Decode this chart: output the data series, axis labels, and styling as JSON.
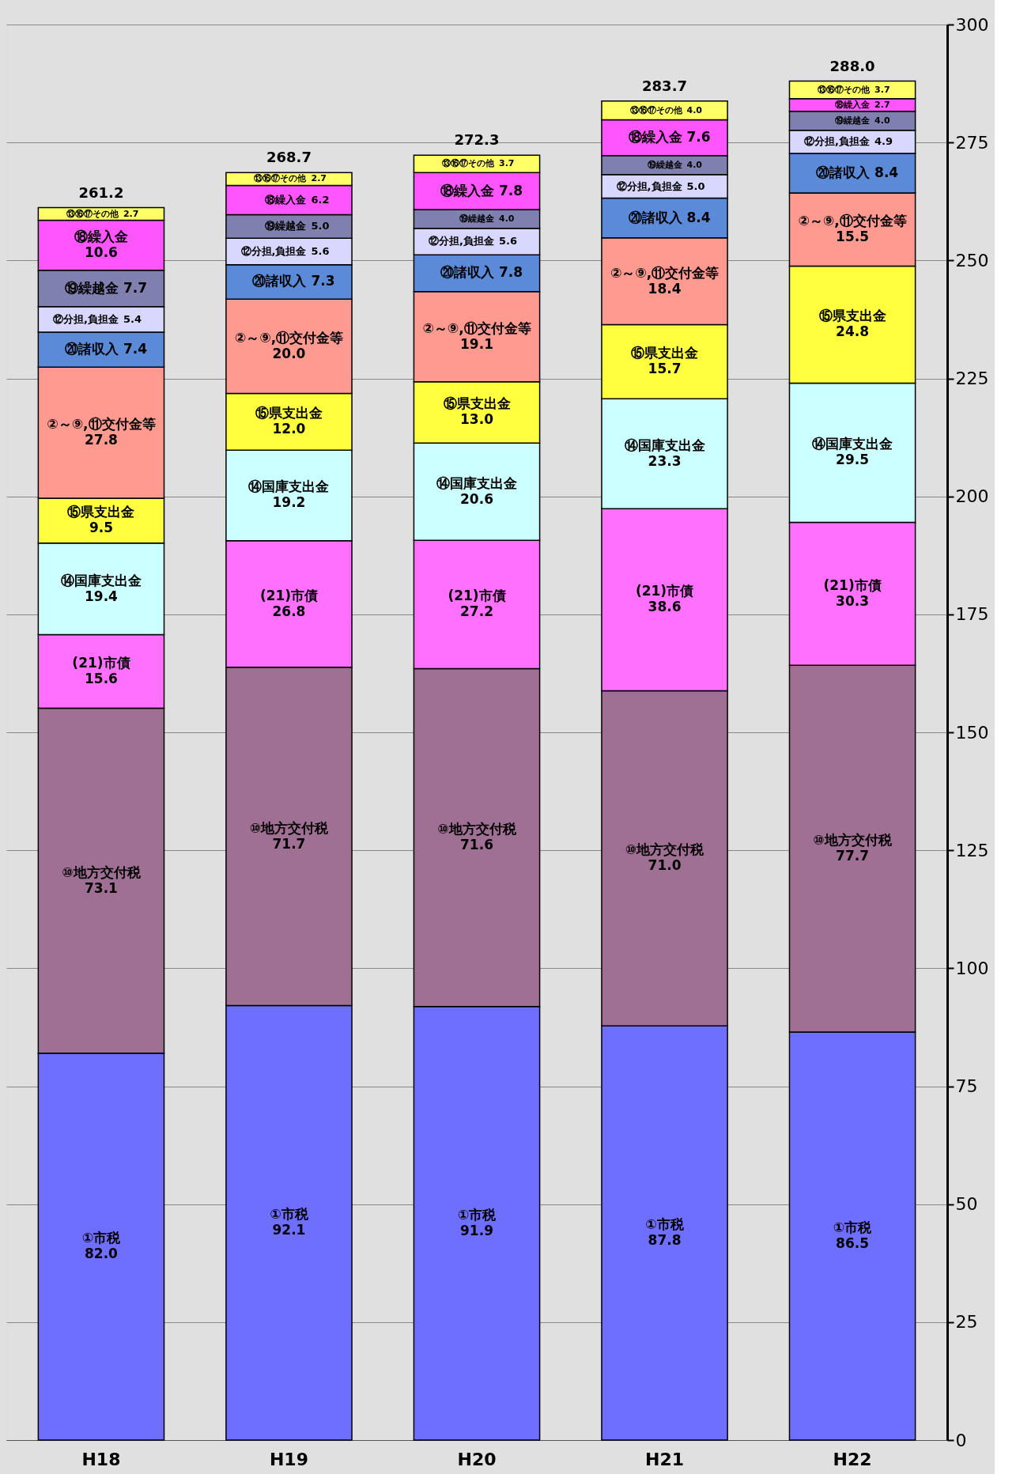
{
  "chart_data": {
    "type": "bar",
    "stacked": true,
    "categories": [
      "H18",
      "H19",
      "H20",
      "H21",
      "H22"
    ],
    "series": [
      {
        "name": "①市税",
        "color": "#6f6fff",
        "values": [
          82.0,
          92.1,
          91.9,
          87.8,
          86.5
        ],
        "value_labels": [
          "82.0",
          "92.1",
          "91.9",
          "87.8",
          "86.5"
        ]
      },
      {
        "name": "⑩地方交付税",
        "color": "#a07094",
        "values": [
          73.1,
          71.7,
          71.6,
          71.0,
          77.7
        ],
        "value_labels": [
          "73.1",
          "71.7",
          "71.6",
          "71.0",
          "77.7"
        ]
      },
      {
        "name": "(21)市債",
        "color": "#ff70ff",
        "values": [
          15.6,
          26.8,
          27.2,
          38.6,
          30.3
        ],
        "value_labels": [
          "15.6",
          "26.8",
          "27.2",
          "38.6",
          "30.3"
        ]
      },
      {
        "name": "⑭国庫支出金",
        "color": "#ccffff",
        "values": [
          19.4,
          19.2,
          20.6,
          23.3,
          29.5
        ],
        "value_labels": [
          "19.4",
          "19.2",
          "20.6",
          "23.3",
          "29.5"
        ]
      },
      {
        "name": "⑮県支出金",
        "color": "#ffff40",
        "values": [
          9.5,
          12.0,
          13.0,
          15.7,
          24.8
        ],
        "value_labels": [
          "9.5",
          "12.0",
          "13.0",
          "15.7",
          "24.8"
        ]
      },
      {
        "name": "②～⑨,⑪交付金等",
        "color": "#ff9a90",
        "values": [
          27.8,
          20.0,
          19.1,
          18.4,
          15.5
        ],
        "value_labels": [
          "27.8",
          "20.0",
          "19.1",
          "18.4",
          "15.5"
        ]
      },
      {
        "name": "⑳諸収入",
        "color": "#5a8ad8",
        "values": [
          7.4,
          7.3,
          7.8,
          8.4,
          8.4
        ],
        "value_labels": [
          "7.4",
          "7.3",
          "7.8",
          "8.4",
          "8.4"
        ]
      },
      {
        "name": "⑫分担,負担金",
        "color": "#d8d8ff",
        "values": [
          5.4,
          5.6,
          5.6,
          5.0,
          4.9
        ],
        "value_labels": [
          "5.4",
          "5.6",
          "5.6",
          "5.0",
          "4.9"
        ]
      },
      {
        "name": "⑲繰越金",
        "color": "#8080b0",
        "values": [
          7.7,
          5.0,
          4.0,
          4.0,
          4.0
        ],
        "value_labels": [
          "7.7",
          "5.0",
          "4.0",
          "4.0",
          "4.0"
        ]
      },
      {
        "name": "⑱繰入金",
        "color": "#ff55ff",
        "values": [
          10.6,
          6.2,
          7.8,
          7.6,
          2.7
        ],
        "value_labels": [
          "10.6",
          "6.2",
          "7.8",
          "7.6",
          "2.7"
        ]
      },
      {
        "name": "⑬⑯⑰その他",
        "color": "#ffff66",
        "values": [
          2.7,
          2.7,
          3.7,
          4.0,
          3.7
        ],
        "value_labels": [
          "2.7",
          "2.7",
          "3.7",
          "4.0",
          "3.7"
        ]
      }
    ],
    "totals": [
      "261.2",
      "268.7",
      "272.3",
      "283.7",
      "288.0"
    ],
    "ylim": [
      0,
      300
    ],
    "yticks": [
      0,
      25,
      50,
      75,
      100,
      125,
      150,
      175,
      200,
      225,
      250,
      275,
      300
    ],
    "grid": "y",
    "legend": false
  }
}
